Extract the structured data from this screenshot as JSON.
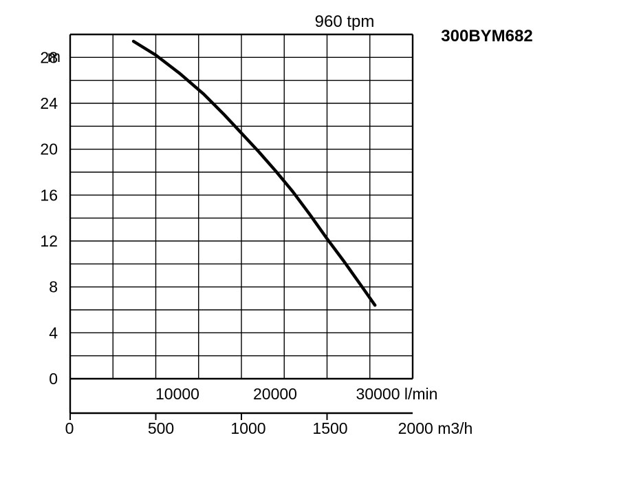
{
  "chart_data": {
    "type": "line",
    "title": "300BYM682",
    "subtitle": "960 tpm",
    "ylabel": "m",
    "ylim": [
      0,
      30
    ],
    "y_ticks": [
      "0",
      "4",
      "8",
      "12",
      "16",
      "20",
      "24",
      "28"
    ],
    "x_flow_ticks": [
      "10000",
      "20000",
      "30000 l/min"
    ],
    "x_m3h_ticks": [
      "0",
      "500",
      "1000",
      "1500",
      "2000 m3/h"
    ],
    "xlim_m3h": [
      0,
      2000
    ],
    "grid": true,
    "series": [
      {
        "x": [
          370,
          500,
          640,
          780,
          900,
          1000,
          1100,
          1200,
          1300,
          1400,
          1500,
          1600,
          1700,
          1780
        ],
        "y": [
          29.4,
          28.2,
          26.6,
          24.8,
          23.0,
          21.4,
          19.8,
          18.1,
          16.3,
          14.3,
          12.2,
          10.2,
          8.1,
          6.4
        ],
        "color": "#000000"
      }
    ]
  }
}
